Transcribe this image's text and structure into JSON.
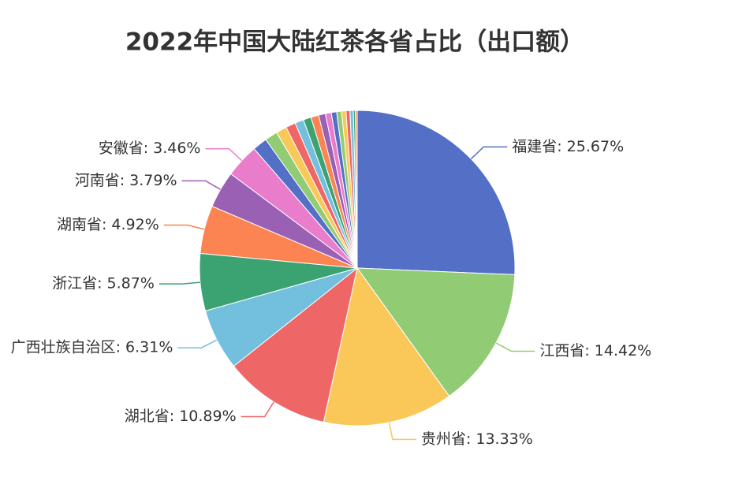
{
  "chart_data": {
    "type": "pie",
    "title": "2022年中国大陆红茶各省占比（出口额）",
    "categories": [
      "福建省",
      "江西省",
      "贵州省",
      "湖北省",
      "广西壮族自治区",
      "浙江省",
      "湖南省",
      "河南省",
      "安徽省",
      null,
      null,
      null,
      null,
      null,
      null,
      null,
      null,
      null,
      null,
      null,
      null,
      null,
      null,
      null,
      null
    ],
    "values": [
      25.67,
      14.42,
      13.33,
      10.89,
      6.31,
      5.87,
      4.92,
      3.79,
      3.46,
      1.5,
      1.3,
      1.1,
      1.0,
      0.9,
      0.8,
      0.8,
      0.7,
      0.6,
      0.55,
      0.5,
      0.45,
      0.4,
      0.35,
      0.2,
      0.19
    ],
    "value_labels": [
      "福建省: 25.67%",
      "江西省: 14.42%",
      "贵州省: 13.33%",
      "湖北省: 10.89%",
      "广西壮族自治区: 6.31%",
      "浙江省: 5.87%",
      "湖南省: 4.92%",
      "河南省: 3.79%",
      "安徽省: 3.46%",
      null,
      null,
      null,
      null,
      null,
      null,
      null,
      null,
      null,
      null,
      null,
      null,
      null,
      null,
      null,
      null
    ],
    "colors": [
      "#5470c6",
      "#91cc75",
      "#fac858",
      "#ee6666",
      "#73c0de",
      "#3ba272",
      "#fc8452",
      "#9a60b4",
      "#ea7ccc"
    ]
  }
}
